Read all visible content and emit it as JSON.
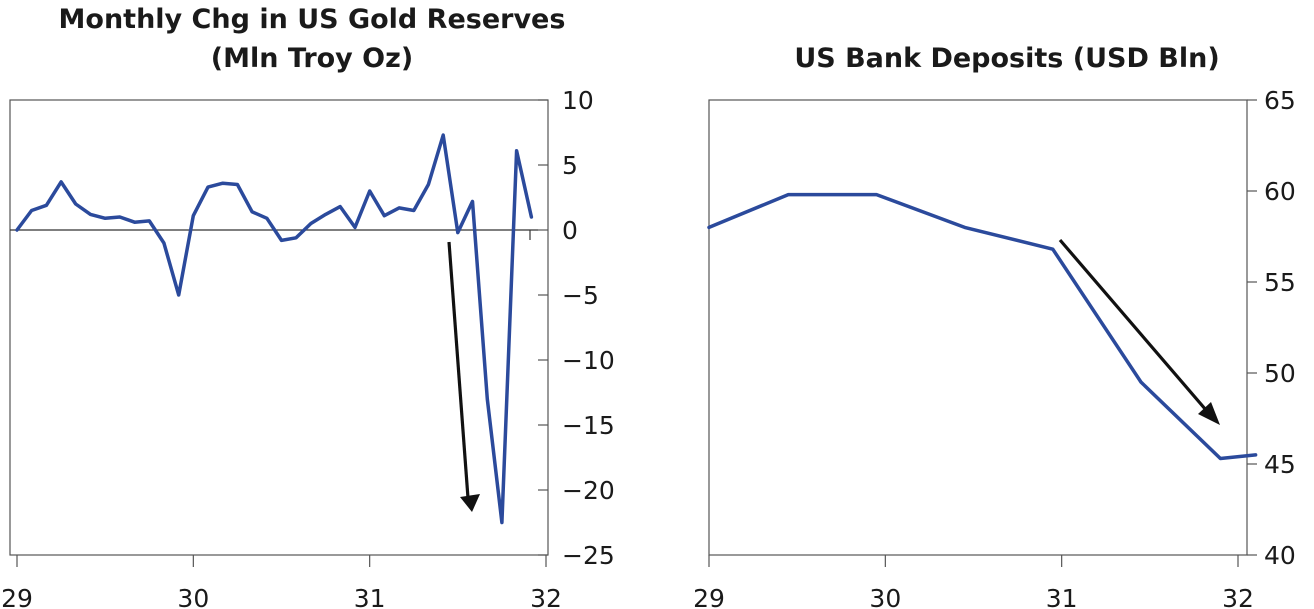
{
  "chart_data": [
    {
      "type": "line",
      "title": "Monthly Chg in US Gold Reserves",
      "subtitle": "(Mln Troy Oz)",
      "xlabel": "",
      "ylabel": "",
      "xlim": [
        29,
        32
      ],
      "ylim": [
        -25,
        10
      ],
      "x_ticks": [
        "29",
        "30",
        "31",
        "32"
      ],
      "y_ticks": [
        "10",
        "5",
        "0",
        "-5",
        "-10",
        "-15",
        "-20",
        "-25"
      ],
      "y_axis_side": "right",
      "zero_line": true,
      "series": [
        {
          "x": [
            29.0,
            29.083,
            29.167,
            29.25,
            29.333,
            29.417,
            29.5,
            29.583,
            29.667,
            29.75,
            29.833,
            29.917,
            30.0,
            30.083,
            30.167,
            30.25,
            30.333,
            30.417,
            30.5,
            30.583,
            30.667,
            30.75,
            30.833,
            30.917,
            31.0,
            31.083,
            31.167,
            31.25,
            31.333,
            31.417,
            31.5,
            31.583,
            31.667,
            31.75,
            31.833,
            31.917
          ],
          "values": [
            0.0,
            1.5,
            1.9,
            3.7,
            2.0,
            1.2,
            0.9,
            1.0,
            0.6,
            0.7,
            -1.0,
            -5.0,
            1.1,
            3.3,
            3.6,
            3.5,
            1.4,
            0.9,
            -0.8,
            -0.6,
            0.5,
            1.2,
            1.8,
            0.2,
            3.0,
            1.1,
            1.7,
            1.5,
            3.5,
            7.3,
            -0.2,
            2.2,
            -13.0,
            -22.5,
            6.1,
            1.0
          ]
        }
      ],
      "annotations": [
        {
          "type": "arrow",
          "direction": "down"
        }
      ]
    },
    {
      "type": "line",
      "title": "US Bank Deposits (USD Bln)",
      "xlabel": "",
      "ylabel": "",
      "xlim": [
        29,
        32.1
      ],
      "ylim": [
        40,
        65
      ],
      "x_ticks": [
        "29",
        "30",
        "31",
        "32"
      ],
      "y_ticks": [
        "65",
        "60",
        "55",
        "50",
        "45",
        "40"
      ],
      "y_axis_side": "right",
      "series": [
        {
          "x": [
            29.0,
            29.45,
            29.95,
            30.45,
            30.95,
            31.45,
            31.9,
            32.1
          ],
          "values": [
            58.0,
            59.8,
            59.8,
            58.0,
            56.8,
            49.5,
            45.3,
            45.5
          ]
        }
      ],
      "annotations": [
        {
          "type": "arrow",
          "direction": "down-right"
        }
      ]
    }
  ]
}
